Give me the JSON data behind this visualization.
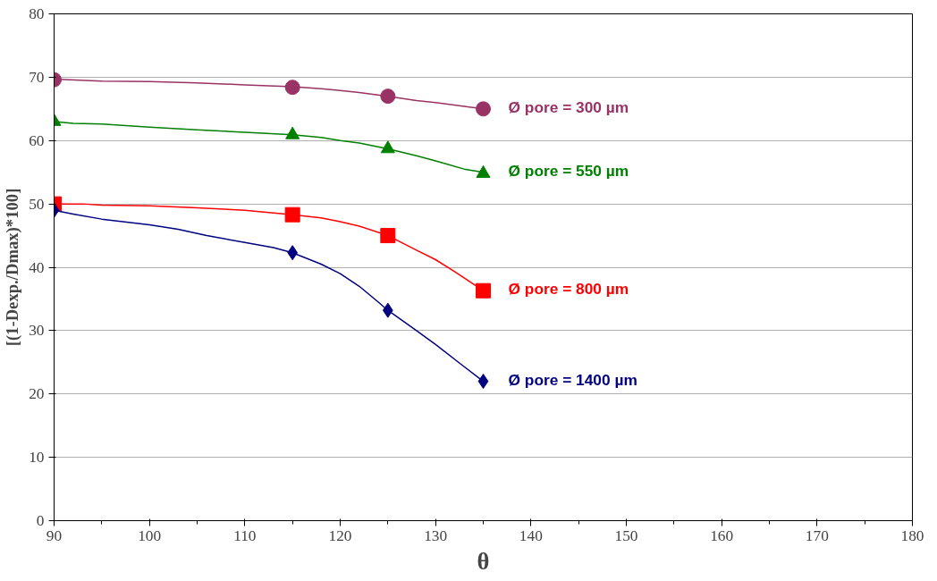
{
  "chart_data": {
    "type": "line",
    "xlabel": "θ",
    "ylabel": "[(1-Dexp./Dmax)*100]",
    "xlim": [
      90,
      180
    ],
    "xticks": [
      90,
      100,
      110,
      120,
      130,
      140,
      150,
      160,
      170,
      180
    ],
    "ylim": [
      0,
      80
    ],
    "yticks": [
      0,
      10,
      20,
      30,
      40,
      50,
      60,
      70,
      80
    ],
    "grid": "y",
    "line_style": "solid",
    "series": [
      {
        "name": "Ø pore = 300 µm",
        "color": "#993366",
        "x": [
          90,
          95,
          100,
          105,
          110,
          115,
          118,
          120,
          122,
          125,
          128,
          130,
          133,
          135
        ],
        "values": [
          69.7,
          69.4,
          69.3,
          69.1,
          68.8,
          68.5,
          68.2,
          67.9,
          67.6,
          67.0,
          66.3,
          66.0,
          65.4,
          65.0
        ]
      },
      {
        "type": "scatter",
        "marker": "circle",
        "color": "#993366",
        "x": [
          90,
          115,
          125,
          135
        ],
        "values": [
          69.6,
          68.4,
          67.0,
          65.0
        ]
      },
      {
        "name": "Ø pore = 550 µm",
        "color": "#008000",
        "x": [
          90,
          92,
          95,
          100,
          105,
          110,
          115,
          118,
          120,
          122,
          125,
          128,
          130,
          133,
          135
        ],
        "values": [
          63.0,
          62.7,
          62.6,
          62.1,
          61.7,
          61.3,
          60.9,
          60.5,
          60.0,
          59.6,
          58.7,
          57.6,
          56.8,
          55.5,
          55.0
        ]
      },
      {
        "type": "scatter",
        "marker": "triangle",
        "color": "#008000",
        "x": [
          90,
          115,
          125,
          135
        ],
        "values": [
          63.0,
          60.9,
          58.7,
          54.8
        ]
      },
      {
        "name": "Ø pore = 800 µm",
        "color": "#ff0000",
        "x": [
          90,
          93,
          95,
          100,
          105,
          110,
          115,
          118,
          120,
          122,
          125,
          128,
          130,
          132,
          135
        ],
        "values": [
          50.0,
          50.0,
          49.8,
          49.7,
          49.4,
          49.0,
          48.3,
          47.8,
          47.2,
          46.5,
          45.0,
          42.7,
          41.2,
          39.3,
          36.3
        ]
      },
      {
        "type": "scatter",
        "marker": "square",
        "color": "#ff0000",
        "x": [
          90,
          115,
          125,
          135
        ],
        "values": [
          50.0,
          48.3,
          45.0,
          36.3
        ]
      },
      {
        "name": "Ø pore = 1400 µm",
        "color": "#000080",
        "x": [
          90,
          92,
          95,
          100,
          103,
          106,
          110,
          113,
          115,
          118,
          120,
          122,
          124,
          125,
          128,
          130,
          133,
          135
        ],
        "values": [
          49.0,
          48.4,
          47.6,
          46.7,
          46.0,
          45.0,
          43.9,
          43.1,
          42.3,
          40.5,
          39.0,
          37.0,
          34.5,
          33.2,
          30.0,
          27.8,
          24.3,
          22.0
        ]
      },
      {
        "type": "scatter",
        "marker": "diamond",
        "color": "#000080",
        "x": [
          90,
          115,
          125,
          135
        ],
        "values": [
          49.0,
          42.3,
          33.2,
          22.0
        ]
      }
    ]
  }
}
